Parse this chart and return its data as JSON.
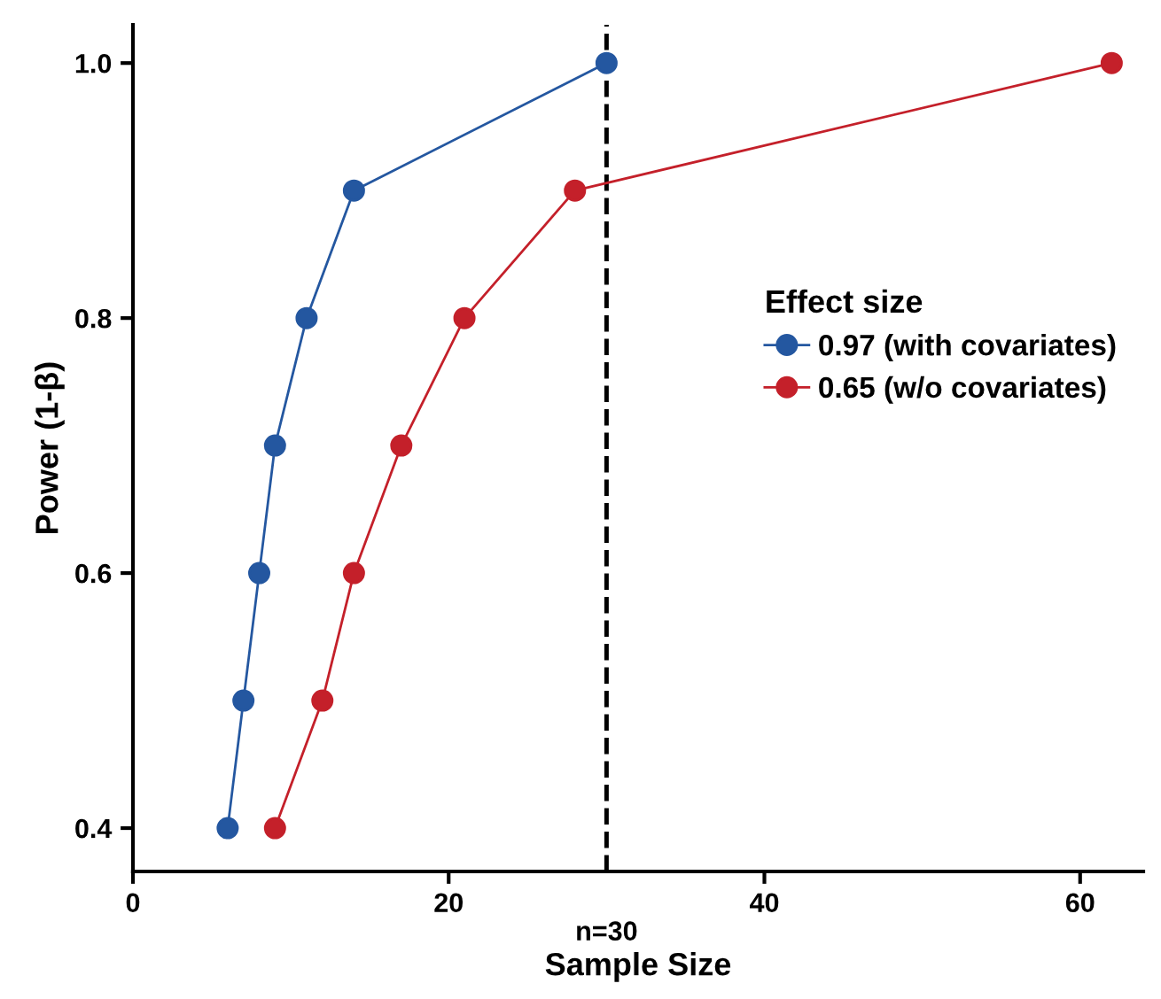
{
  "chart_data": {
    "type": "line",
    "xlabel": "Sample Size",
    "ylabel": "Power (1-β)",
    "legend_title": "Effect size",
    "xlim": [
      0,
      64
    ],
    "ylim": [
      0.366,
      1.03
    ],
    "xticks": [
      0,
      20,
      40,
      60
    ],
    "yticks": [
      0.4,
      0.6,
      0.8,
      {
        "value": 1,
        "label": "1.0"
      }
    ],
    "series": [
      {
        "name": "0.97 (with covariates)",
        "color": "#2457a0",
        "x": [
          6,
          7,
          8,
          9,
          11,
          14,
          30
        ],
        "values": [
          0.4,
          0.5,
          0.6,
          0.7,
          0.8,
          0.9,
          1.0
        ]
      },
      {
        "name": "0.65 (w/o covariates)",
        "color": "#c4202a",
        "x": [
          9,
          12,
          14,
          17,
          21,
          28,
          62
        ],
        "values": [
          0.4,
          0.5,
          0.6,
          0.7,
          0.8,
          0.9,
          1.0
        ]
      }
    ],
    "ref_lines": [
      {
        "axis": "x",
        "value": 30,
        "label": "n=30",
        "color": "#000000",
        "line_style": "dashed"
      }
    ],
    "marker": "circle",
    "line_style": "solid",
    "legend": "right",
    "grid": false
  }
}
